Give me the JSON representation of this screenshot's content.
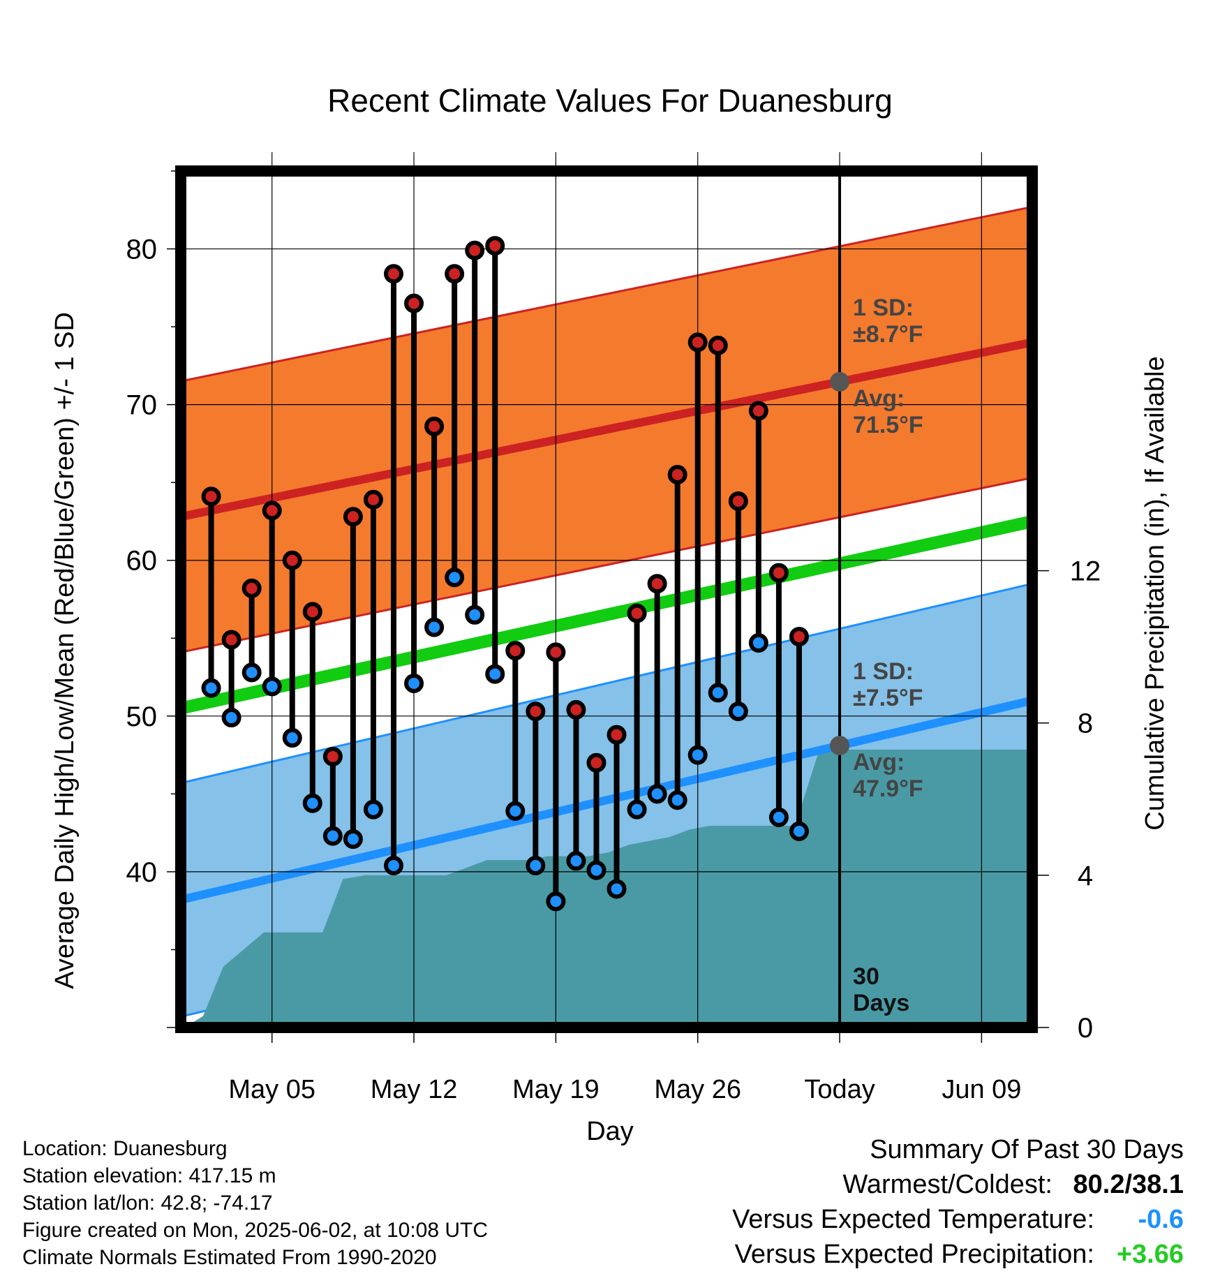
{
  "chart_data": {
    "type": "line",
    "title": "Recent Climate Values For Duanesburg",
    "xlabel": "Day",
    "ylabel": "Average Daily High/Low/Mean (Red/Blue/Green) +/- 1 SD",
    "y2label": "Cumulative Precipitation (in), If Available",
    "ylim": [
      30,
      85
    ],
    "y2lim": [
      0,
      22.5
    ],
    "y_ticks": [
      40,
      50,
      60,
      70,
      80
    ],
    "y_tick_labels": [
      "40",
      "50",
      "60",
      "70",
      "80"
    ],
    "y2_ticks": [
      0,
      4,
      8,
      12
    ],
    "y2_tick_labels": [
      "0",
      "4",
      "8",
      "12"
    ],
    "x_range_days": [
      0.5,
      42.5
    ],
    "x_ticks": [
      {
        "day": 5,
        "label": "May 05"
      },
      {
        "day": 12,
        "label": "May 12"
      },
      {
        "day": 19,
        "label": "May 19"
      },
      {
        "day": 26,
        "label": "May 26"
      },
      {
        "day": 33,
        "label": "Today"
      },
      {
        "day": 40,
        "label": "Jun 09"
      }
    ],
    "grid": true,
    "today_day": 33,
    "days_label": [
      "30",
      "Days"
    ],
    "normal_high": {
      "start": 62.8,
      "end": 74.0,
      "sd": 8.7
    },
    "normal_low": {
      "start": 38.2,
      "end": 51.0,
      "sd": 7.5
    },
    "normal_mean": {
      "start": 50.5,
      "end": 62.5
    },
    "annotations": {
      "high_sd": "1 SD:",
      "high_sd_value": "±8.7°F",
      "high_avg": "Avg:",
      "high_avg_value": "71.5°F",
      "low_sd": "1 SD:",
      "low_sd_value": "±7.5°F",
      "low_avg": "Avg:",
      "low_avg_value": "47.9°F"
    },
    "series": [
      {
        "name": "High",
        "color": "#cc2222",
        "x": [
          2,
          3,
          4,
          5,
          6,
          7,
          8,
          9,
          10,
          11,
          12,
          13,
          14,
          15,
          16,
          17,
          18,
          19,
          20,
          21,
          22,
          23,
          24,
          25,
          26,
          27,
          28,
          29,
          30,
          31,
          32
        ],
        "values": [
          64.1,
          54.9,
          58.2,
          63.2,
          60.0,
          56.7,
          47.4,
          62.8,
          63.9,
          78.4,
          76.5,
          68.6,
          78.4,
          79.9,
          80.2,
          54.2,
          50.3,
          54.1,
          50.4,
          47.0,
          48.8,
          56.6,
          58.5,
          65.5,
          74.0,
          73.8,
          63.8,
          69.6,
          59.2,
          55.1,
          null
        ]
      },
      {
        "name": "Low",
        "color": "#1e90ff",
        "x": [
          2,
          3,
          4,
          5,
          6,
          7,
          8,
          9,
          10,
          11,
          12,
          13,
          14,
          15,
          16,
          17,
          18,
          19,
          20,
          21,
          22,
          23,
          24,
          25,
          26,
          27,
          28,
          29,
          30,
          31,
          32
        ],
        "values": [
          51.8,
          49.9,
          52.8,
          51.9,
          48.6,
          44.4,
          42.3,
          42.1,
          44.0,
          40.4,
          52.1,
          55.7,
          58.9,
          56.5,
          52.7,
          43.9,
          40.4,
          38.1,
          40.7,
          40.1,
          38.9,
          44.0,
          45.0,
          44.6,
          47.5,
          51.5,
          50.3,
          54.7,
          43.5,
          42.6,
          null
        ]
      },
      {
        "name": "Cumulative Precipitation",
        "color": "#4a9aa5",
        "x": [
          0.5,
          1,
          1.6,
          2.6,
          3.5,
          4.6,
          5.5,
          6.5,
          7.5,
          8.5,
          9.6,
          10.6,
          11.6,
          12.6,
          13.6,
          14.6,
          15.6,
          16.6,
          17.6,
          18.6,
          19.6,
          20.6,
          21.6,
          22.6,
          23.6,
          24.6,
          25.6,
          26.6,
          27.6,
          28.6,
          29.6,
          30.8,
          32,
          35.6,
          42.5
        ],
        "values": [
          0.0,
          0.1,
          0.3,
          1.6,
          2.0,
          2.5,
          2.5,
          2.5,
          2.5,
          3.9,
          4.0,
          4.0,
          4.0,
          4.0,
          4.0,
          4.2,
          4.4,
          4.4,
          4.4,
          4.5,
          4.5,
          4.5,
          4.6,
          4.8,
          4.9,
          5.0,
          5.2,
          5.3,
          5.3,
          5.3,
          5.3,
          5.3,
          7.3,
          7.3,
          7.3
        ]
      }
    ]
  },
  "info": {
    "location": "Location: Duanesburg",
    "elevation": "Station elevation: 417.15 m",
    "latlon": "Station lat/lon: 42.8; -74.17",
    "created": "Figure created on Mon, 2025-06-02, at 10:08 UTC",
    "normals": "Climate Normals Estimated From 1990-2020"
  },
  "summary": {
    "title": "Summary Of Past 30 Days",
    "warmest_label": "Warmest/Coldest:",
    "warmest_value": "80.2/38.1",
    "temp_label": "Versus Expected Temperature:",
    "temp_value": "-0.6",
    "precip_label": "Versus Expected Precipitation:",
    "precip_value": "+3.66"
  },
  "colors": {
    "high_band": "#f47a2e",
    "high_line": "#cc2222",
    "low_band": "#85c1e8",
    "low_line": "#1e90ff",
    "mean_line": "#11cc11",
    "precip": "#4a9aa5",
    "avg_marker": "#555555",
    "annotation_text": "#444444",
    "warm_value": "#000000",
    "temp_value": "#1e90ff",
    "precip_value": "#22cc22"
  }
}
